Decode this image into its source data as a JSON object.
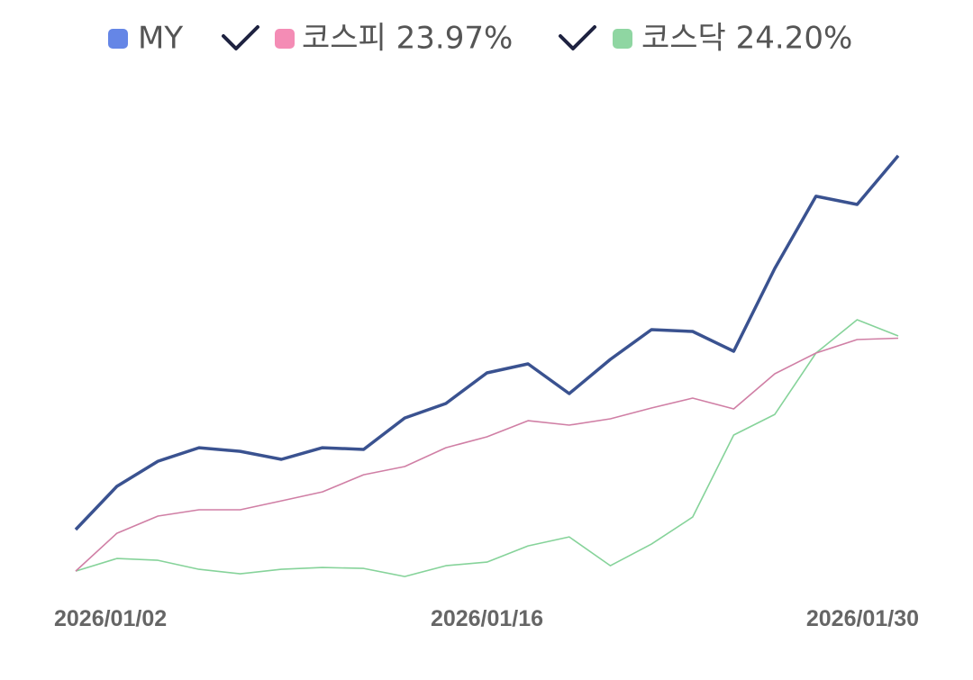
{
  "chart_data": {
    "type": "line",
    "categories": [
      "2026/01/02",
      null,
      null,
      null,
      null,
      null,
      null,
      null,
      null,
      null,
      "2026/01/16",
      null,
      null,
      null,
      null,
      null,
      null,
      null,
      null,
      null,
      "2026/01/30"
    ],
    "series": [
      {
        "name": "MY",
        "color": "#3a5290",
        "legend_color": "#6586e6",
        "values": [
          4.27,
          8.72,
          11.31,
          12.7,
          12.33,
          11.5,
          12.7,
          12.52,
          15.76,
          17.25,
          20.4,
          21.33,
          18.27,
          21.79,
          24.85,
          24.66,
          22.62,
          31.15,
          38.57,
          37.73,
          42.74
        ]
      },
      {
        "name": "코스피 23.97%",
        "color": "#d07fa5",
        "legend_color": "#f48cb5",
        "values": [
          0,
          3.89,
          5.66,
          6.31,
          6.31,
          7.23,
          8.16,
          9.92,
          10.76,
          12.7,
          13.82,
          15.48,
          15.02,
          15.67,
          16.78,
          17.8,
          16.69,
          20.31,
          22.44,
          23.83,
          23.97
        ]
      },
      {
        "name": "코스닥 24.20%",
        "color": "#86d39a",
        "legend_color": "#8fd6a2",
        "values": [
          0,
          1.3,
          1.11,
          0.19,
          -0.28,
          0.19,
          0.37,
          0.28,
          -0.56,
          0.56,
          0.93,
          2.6,
          3.52,
          0.56,
          2.78,
          5.56,
          14.0,
          16.13,
          22.44,
          25.87,
          24.2
        ]
      }
    ],
    "ylim": [
      -2.4,
      49.5
    ]
  }
}
